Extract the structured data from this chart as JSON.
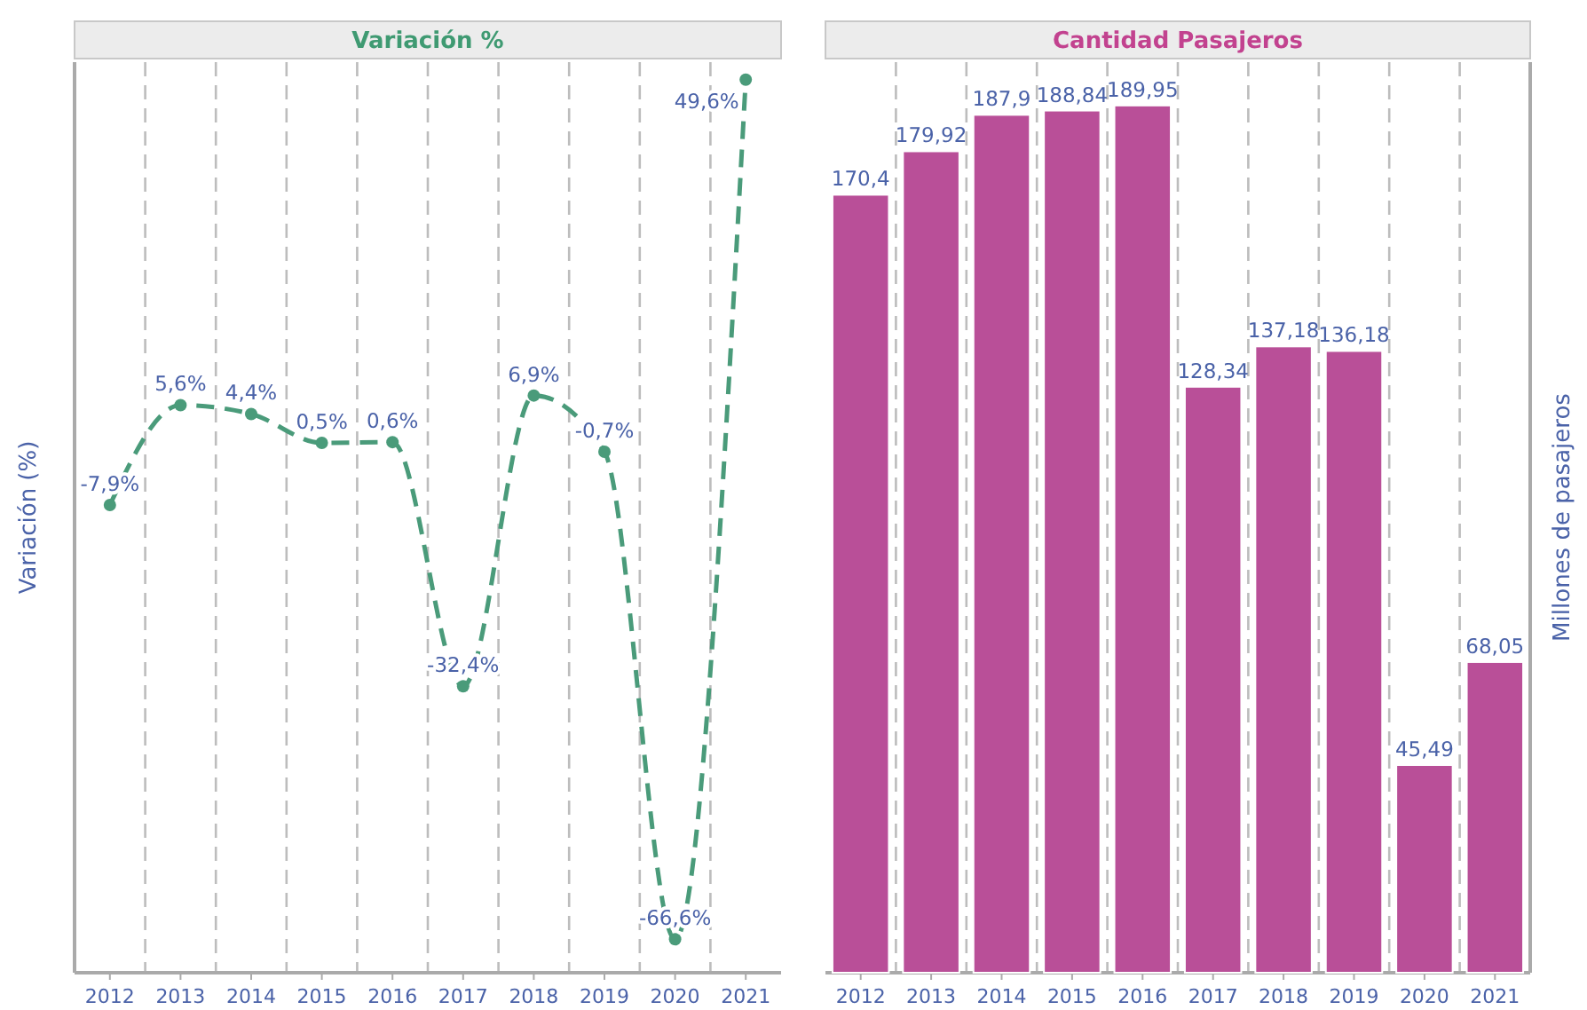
{
  "chart_data": [
    {
      "type": "line",
      "title": "Variación %",
      "ylabel": "Variación (%)",
      "categories": [
        "2012",
        "2013",
        "2014",
        "2015",
        "2016",
        "2017",
        "2018",
        "2019",
        "2020",
        "2021"
      ],
      "series": [
        {
          "color": "#4a9b7a",
          "values": [
            -7.9,
            5.6,
            4.4,
            0.5,
            0.6,
            -32.4,
            6.9,
            -0.7,
            -66.6,
            49.6
          ],
          "value_labels": [
            "-7,9%",
            "5,6%",
            "4,4%",
            "0,5%",
            "0,6%",
            "-32,4%",
            "6,9%",
            "-0,7%",
            "-66,6%",
            "49,6%"
          ]
        }
      ],
      "marker": "circle",
      "line_style": "dashed",
      "grid": "x"
    },
    {
      "type": "bar",
      "title": "Cantidad Pasajeros",
      "ylabel": "Millones de pasajeros",
      "categories": [
        "2012",
        "2013",
        "2014",
        "2015",
        "2016",
        "2017",
        "2018",
        "2019",
        "2020",
        "2021"
      ],
      "series": [
        {
          "color": "#b94f98",
          "values": [
            170.4,
            179.92,
            187.9,
            188.84,
            189.95,
            128.34,
            137.18,
            136.18,
            45.49,
            68.05
          ],
          "value_labels": [
            "170,4",
            "179,92",
            "187,9",
            "188,84",
            "189,95",
            "128,34",
            "137,18",
            "136,18",
            "45,49",
            "68,05"
          ]
        }
      ],
      "grid": "x"
    }
  ]
}
